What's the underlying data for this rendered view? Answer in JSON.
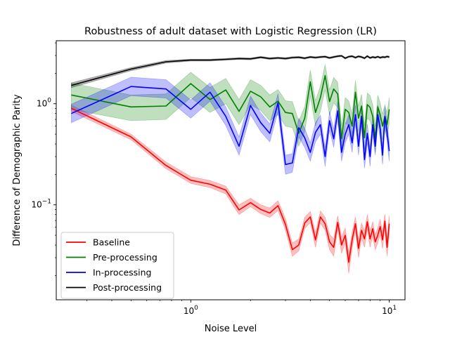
{
  "chart_data": {
    "type": "line",
    "title": "Robustness of adult dataset with Logistic Regression (LR)",
    "xlabel": "Noise Level",
    "ylabel": "Difference of Demographic Parity",
    "xscale": "log",
    "yscale": "log",
    "xlim": [
      0.21,
      12.0
    ],
    "ylim": [
      0.0115,
      4.2
    ],
    "x_ticks": [
      {
        "value": 1,
        "label": "10^0",
        "base": "10",
        "exp": "0"
      },
      {
        "value": 10,
        "label": "10^1",
        "base": "10",
        "exp": "1"
      }
    ],
    "y_ticks": [
      {
        "value": 0.1,
        "label": "10^-1",
        "base": "10",
        "exp": "−1"
      },
      {
        "value": 1,
        "label": "10^0",
        "base": "10",
        "exp": "0"
      }
    ],
    "legend_position": "lower-left",
    "grid": false,
    "x": [
      0.25,
      0.5,
      0.75,
      1.0,
      1.25,
      1.5,
      1.75,
      2.0,
      2.25,
      2.5,
      2.75,
      3.0,
      3.25,
      3.5,
      3.75,
      4.0,
      4.25,
      4.5,
      4.75,
      5.0,
      5.25,
      5.5,
      5.75,
      6.0,
      6.25,
      6.5,
      6.75,
      7.0,
      7.25,
      7.5,
      7.75,
      8.0,
      8.25,
      8.5,
      8.75,
      9.0,
      9.25,
      9.5,
      9.75,
      10.0
    ],
    "series": [
      {
        "name": "Baseline",
        "color": "#ff0000",
        "band_opacity": 0.25,
        "values": [
          0.9,
          0.47,
          0.245,
          0.175,
          0.16,
          0.14,
          0.089,
          0.105,
          0.09,
          0.083,
          0.098,
          0.064,
          0.036,
          0.04,
          0.066,
          0.076,
          0.045,
          0.076,
          0.065,
          0.043,
          0.038,
          0.067,
          0.04,
          0.05,
          0.027,
          0.045,
          0.065,
          0.037,
          0.056,
          0.046,
          0.068,
          0.046,
          0.058,
          0.043,
          0.05,
          0.061,
          0.045,
          0.069,
          0.038,
          0.065
        ],
        "lower": [
          0.84,
          0.44,
          0.228,
          0.163,
          0.148,
          0.128,
          0.08,
          0.096,
          0.082,
          0.075,
          0.088,
          0.056,
          0.031,
          0.035,
          0.058,
          0.067,
          0.038,
          0.066,
          0.056,
          0.036,
          0.031,
          0.057,
          0.033,
          0.042,
          0.021,
          0.037,
          0.055,
          0.03,
          0.047,
          0.038,
          0.057,
          0.038,
          0.049,
          0.036,
          0.042,
          0.051,
          0.037,
          0.058,
          0.031,
          0.052
        ],
        "upper": [
          0.97,
          0.5,
          0.265,
          0.19,
          0.174,
          0.153,
          0.1,
          0.116,
          0.1,
          0.093,
          0.11,
          0.073,
          0.042,
          0.046,
          0.075,
          0.086,
          0.053,
          0.087,
          0.075,
          0.051,
          0.046,
          0.078,
          0.048,
          0.059,
          0.034,
          0.054,
          0.076,
          0.045,
          0.066,
          0.055,
          0.08,
          0.055,
          0.068,
          0.051,
          0.059,
          0.072,
          0.054,
          0.081,
          0.046,
          0.078
        ]
      },
      {
        "name": "Pre-processing",
        "color": "#008000",
        "band_opacity": 0.25,
        "values": [
          1.22,
          0.93,
          0.95,
          1.58,
          1.1,
          1.37,
          0.84,
          1.33,
          1.17,
          0.93,
          1.06,
          0.82,
          0.8,
          0.51,
          0.72,
          1.65,
          0.82,
          1.15,
          1.9,
          1.05,
          1.4,
          1.25,
          0.45,
          0.88,
          0.82,
          0.6,
          1.3,
          0.72,
          0.95,
          0.46,
          0.98,
          0.92,
          0.75,
          0.45,
          0.93,
          0.78,
          0.6,
          0.75,
          0.62,
          0.88
        ],
        "lower": [
          0.88,
          0.68,
          0.7,
          1.15,
          0.82,
          1.0,
          0.62,
          0.98,
          0.86,
          0.68,
          0.78,
          0.6,
          0.58,
          0.38,
          0.53,
          1.2,
          0.6,
          0.84,
          1.38,
          0.77,
          1.02,
          0.92,
          0.33,
          0.65,
          0.6,
          0.44,
          0.95,
          0.53,
          0.7,
          0.34,
          0.72,
          0.68,
          0.55,
          0.33,
          0.68,
          0.57,
          0.44,
          0.55,
          0.46,
          0.65
        ],
        "upper": [
          1.6,
          1.22,
          1.25,
          2.05,
          1.45,
          1.78,
          1.1,
          1.73,
          1.52,
          1.22,
          1.38,
          1.07,
          1.05,
          0.67,
          0.94,
          2.15,
          1.07,
          1.5,
          2.45,
          1.37,
          1.82,
          1.63,
          0.6,
          1.15,
          1.07,
          0.79,
          1.7,
          0.94,
          1.24,
          0.61,
          1.28,
          1.2,
          0.98,
          0.6,
          1.21,
          1.02,
          0.79,
          0.98,
          0.82,
          1.15
        ]
      },
      {
        "name": "In-processing",
        "color": "#0000ff",
        "band_opacity": 0.25,
        "values": [
          0.8,
          1.48,
          1.4,
          0.88,
          1.3,
          0.75,
          0.38,
          0.96,
          0.65,
          0.51,
          1.02,
          0.25,
          0.26,
          0.58,
          0.46,
          0.33,
          0.52,
          0.62,
          0.3,
          0.68,
          0.45,
          0.85,
          0.33,
          0.5,
          0.62,
          0.41,
          0.78,
          0.38,
          0.75,
          0.28,
          0.51,
          0.3,
          0.62,
          0.38,
          0.78,
          0.56,
          0.31,
          0.75,
          0.52,
          0.34
        ],
        "lower": [
          0.65,
          1.2,
          1.14,
          0.72,
          1.06,
          0.61,
          0.31,
          0.78,
          0.53,
          0.42,
          0.83,
          0.2,
          0.21,
          0.47,
          0.37,
          0.27,
          0.42,
          0.5,
          0.24,
          0.55,
          0.37,
          0.69,
          0.27,
          0.41,
          0.5,
          0.33,
          0.63,
          0.31,
          0.61,
          0.23,
          0.41,
          0.24,
          0.5,
          0.31,
          0.63,
          0.45,
          0.25,
          0.61,
          0.42,
          0.27
        ],
        "upper": [
          0.99,
          1.83,
          1.73,
          1.09,
          1.61,
          0.93,
          0.47,
          1.19,
          0.81,
          0.63,
          1.26,
          0.31,
          0.32,
          0.72,
          0.57,
          0.41,
          0.65,
          0.77,
          0.37,
          0.84,
          0.56,
          1.05,
          0.41,
          0.62,
          0.77,
          0.51,
          0.97,
          0.47,
          0.93,
          0.35,
          0.63,
          0.37,
          0.77,
          0.47,
          0.97,
          0.69,
          0.38,
          0.93,
          0.65,
          0.42
        ]
      },
      {
        "name": "Post-processing",
        "color": "#000000",
        "band_opacity": 0.3,
        "values": [
          1.52,
          2.2,
          2.6,
          2.7,
          2.7,
          2.75,
          2.8,
          2.78,
          2.88,
          2.8,
          2.84,
          2.8,
          2.86,
          2.88,
          2.82,
          2.9,
          2.86,
          2.9,
          2.92,
          2.84,
          2.9,
          2.95,
          2.98,
          2.82,
          2.92,
          2.95,
          2.86,
          2.94,
          2.9,
          2.82,
          2.96,
          2.84,
          2.9,
          2.86,
          2.92,
          2.85,
          2.9,
          2.88,
          2.93,
          2.9
        ],
        "lower": [
          1.44,
          2.12,
          2.52,
          2.64,
          2.64,
          2.69,
          2.74,
          2.72,
          2.82,
          2.74,
          2.78,
          2.74,
          2.8,
          2.82,
          2.76,
          2.84,
          2.8,
          2.84,
          2.86,
          2.78,
          2.84,
          2.89,
          2.92,
          2.76,
          2.86,
          2.89,
          2.8,
          2.88,
          2.84,
          2.76,
          2.9,
          2.78,
          2.84,
          2.8,
          2.86,
          2.79,
          2.84,
          2.82,
          2.87,
          2.84
        ],
        "upper": [
          1.61,
          2.28,
          2.68,
          2.76,
          2.76,
          2.81,
          2.86,
          2.84,
          2.94,
          2.86,
          2.9,
          2.86,
          2.92,
          2.94,
          2.88,
          2.96,
          2.92,
          2.96,
          2.98,
          2.9,
          2.96,
          3.01,
          3.04,
          2.88,
          2.98,
          3.01,
          2.92,
          3.0,
          2.96,
          2.88,
          3.02,
          2.9,
          2.96,
          2.92,
          2.98,
          2.91,
          2.96,
          2.94,
          2.99,
          2.96
        ]
      }
    ]
  }
}
